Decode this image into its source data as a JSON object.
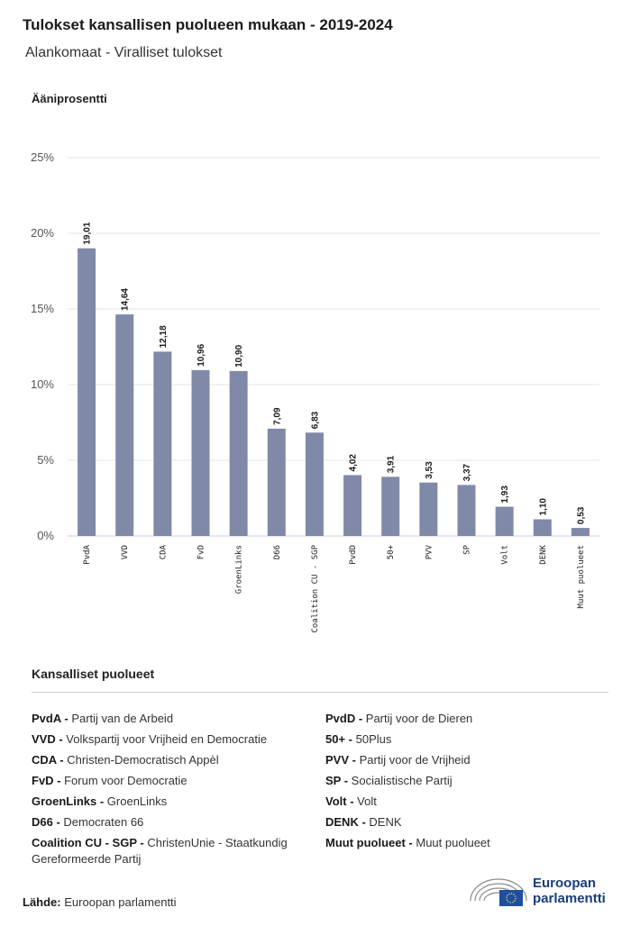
{
  "title": "Tulokset kansallisen puolueen mukaan - 2019-2024",
  "subtitle": "Alankomaat - Viralliset tulokset",
  "chart_data": {
    "type": "bar",
    "ylabel": "Ääniprosentti",
    "categories": [
      "PvdA",
      "VVD",
      "CDA",
      "FvD",
      "GroenLinks",
      "D66",
      "Coalition CU - SGP",
      "PvdD",
      "50+",
      "PVV",
      "SP",
      "Volt",
      "DENK",
      "Muut puolueet"
    ],
    "values": [
      19.01,
      14.64,
      12.18,
      10.96,
      10.9,
      7.09,
      6.83,
      4.02,
      3.91,
      3.53,
      3.37,
      1.93,
      1.1,
      0.53
    ],
    "value_labels": [
      "19,01",
      "14,64",
      "12,18",
      "10,96",
      "10,90",
      "7,09",
      "6,83",
      "4,02",
      "3,91",
      "3,53",
      "3,37",
      "1,93",
      "1,10",
      "0,53"
    ],
    "yticks": [
      "0%",
      "5%",
      "10%",
      "15%",
      "20%",
      "25%"
    ],
    "ytick_values": [
      0,
      5,
      10,
      15,
      20,
      25
    ],
    "ylim": [
      0,
      25
    ],
    "grid": true,
    "bar_color": "#8089a8"
  },
  "legend": {
    "heading": "Kansalliset puolueet",
    "left": [
      {
        "abbr": "PvdA -",
        "name": "Partij van de Arbeid"
      },
      {
        "abbr": "VVD -",
        "name": "Volkspartij voor Vrijheid en Democratie"
      },
      {
        "abbr": "CDA -",
        "name": "Christen-Democratisch Appèl"
      },
      {
        "abbr": "FvD -",
        "name": "Forum voor Democratie"
      },
      {
        "abbr": "GroenLinks -",
        "name": "GroenLinks"
      },
      {
        "abbr": "D66 -",
        "name": "Democraten 66"
      },
      {
        "abbr": "Coalition CU - SGP -",
        "name": "ChristenUnie - Staatkundig Gereformeerde Partij"
      }
    ],
    "right": [
      {
        "abbr": "PvdD -",
        "name": "Partij voor de Dieren"
      },
      {
        "abbr": "50+ -",
        "name": "50Plus"
      },
      {
        "abbr": "PVV -",
        "name": "Partij voor de Vrijheid"
      },
      {
        "abbr": "SP -",
        "name": "Socialistische Partij"
      },
      {
        "abbr": "Volt -",
        "name": "Volt"
      },
      {
        "abbr": "DENK -",
        "name": "DENK"
      },
      {
        "abbr": "Muut puolueet -",
        "name": "Muut puolueet"
      }
    ]
  },
  "source": {
    "label": "Lähde:",
    "value": "Euroopan parlamentti"
  },
  "logo": {
    "line1": "Euroopan",
    "line2": "parlamentti"
  }
}
